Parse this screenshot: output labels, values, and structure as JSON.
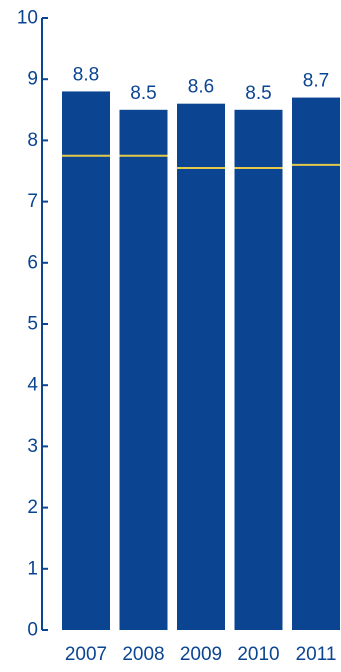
{
  "colors": {
    "bar": "#0b4591",
    "text": "#0b4591",
    "marker": "#e3c84a",
    "axis": "#0b4591"
  },
  "chart_data": {
    "type": "bar",
    "title": "",
    "xlabel": "",
    "ylabel": "",
    "categories": [
      "2007",
      "2008",
      "2009",
      "2010",
      "2011"
    ],
    "values": [
      8.8,
      8.5,
      8.6,
      8.5,
      8.7
    ],
    "value_labels": [
      "8.8",
      "8.5",
      "8.6",
      "8.5",
      "8.7"
    ],
    "reference_values": [
      7.75,
      7.75,
      7.55,
      7.55,
      7.6
    ],
    "ylim": [
      0,
      10
    ],
    "yticks": [
      0,
      1,
      2,
      3,
      4,
      5,
      6,
      7,
      8,
      9,
      10
    ],
    "grid": false,
    "legend": "none"
  }
}
